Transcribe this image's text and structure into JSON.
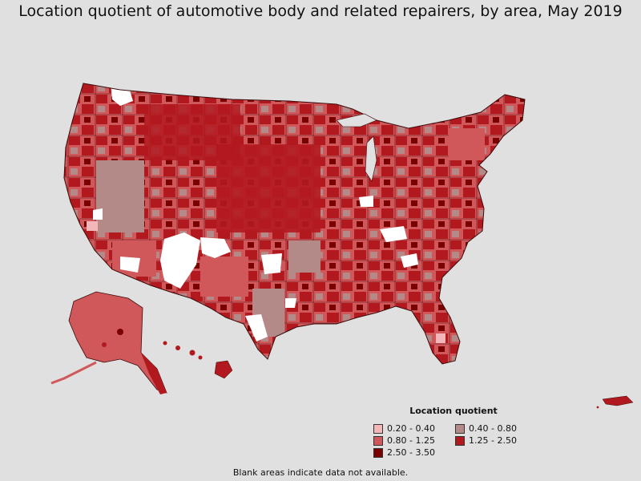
{
  "title": "Location quotient of automotive body and related repairers, by area, May 2019",
  "legend": {
    "title": "Location quotient",
    "items": [
      {
        "label": "0.20 - 0.40",
        "color": "#f4b7b9"
      },
      {
        "label": "0.40 - 0.80",
        "color": "#b48a88"
      },
      {
        "label": "0.80 - 1.25",
        "color": "#d0585a"
      },
      {
        "label": "1.25 - 2.50",
        "color": "#b2191f"
      },
      {
        "label": "2.50 - 3.50",
        "color": "#7a0000"
      }
    ]
  },
  "no_data_color": "#ffffff",
  "footnote": "Blank areas indicate data not available."
}
